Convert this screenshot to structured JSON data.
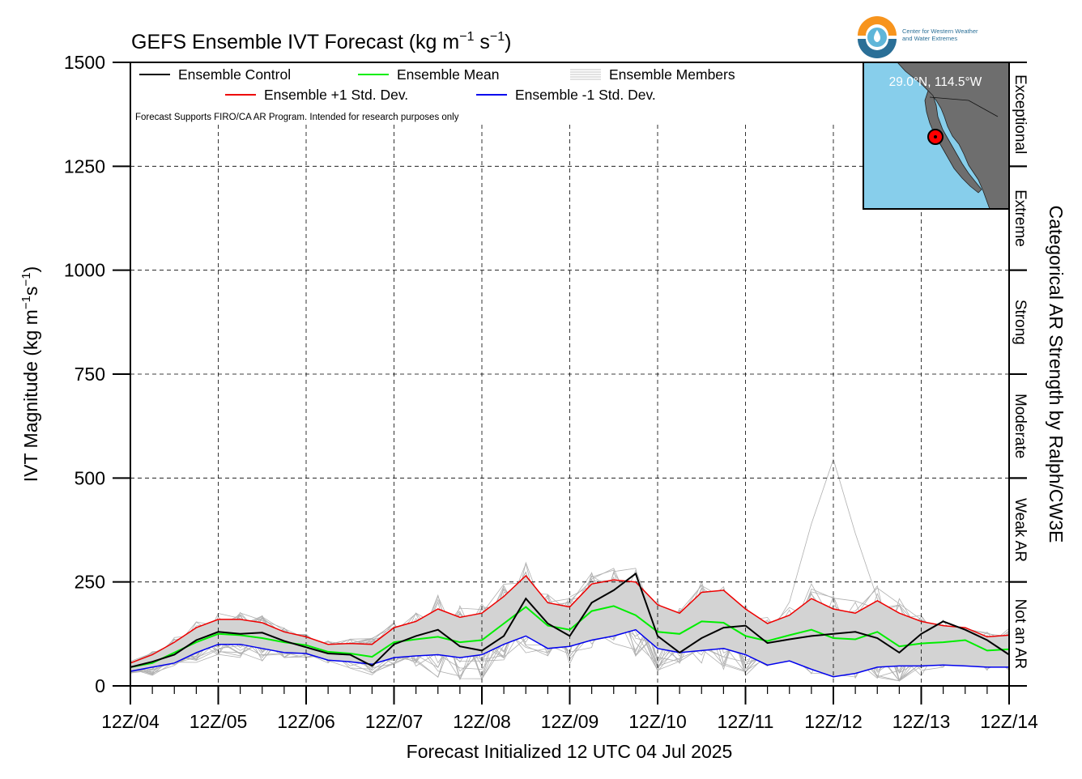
{
  "logo": {
    "name": "cw3e-logo-icon",
    "line1": "Center for Western Weather",
    "line2": "and Water Extremes",
    "colors": {
      "orange": "#f7941d",
      "teal": "#2a6f97",
      "light": "#5fb6d9"
    }
  },
  "inset_map": {
    "label": "29.0°N, 114.5°W",
    "lat": 29.0,
    "lon": -114.5,
    "ocean_color": "#87ceeb",
    "land_color": "#6e6e6e",
    "marker_color": "#ff0000"
  },
  "chart_data": {
    "type": "line",
    "title_main": "GEFS Ensemble IVT Forecast (kg m",
    "title_sup1": "−1",
    "title_mid": " s",
    "title_sup2": "−1",
    "title_end": ")",
    "xlabel": "Forecast Initialized 12 UTC 04 Jul 2025",
    "ylabel_main": "IVT Magnitude (kg m",
    "ylabel_sup1": "−1",
    "ylabel_mid": "s",
    "ylabel_sup2": "−1",
    "ylabel_end": ")",
    "right_label": "Categorical AR Strength by Ralph/CW3E",
    "note": "Forecast Supports FIRO/CA AR Program. Intended for research purposes only",
    "x_range_days": [
      0,
      10
    ],
    "ylim": [
      0,
      1500
    ],
    "yticks": [
      0,
      250,
      500,
      750,
      1000,
      1250,
      1500
    ],
    "xtick_labels": [
      "12Z/04",
      "12Z/05",
      "12Z/06",
      "12Z/07",
      "12Z/08",
      "12Z/09",
      "12Z/10",
      "12Z/11",
      "12Z/12",
      "12Z/13",
      "12Z/14"
    ],
    "grid": true,
    "legend_placement": "top-left",
    "legend": [
      {
        "label": "Ensemble Control",
        "color": "#000000",
        "style": "line"
      },
      {
        "label": "Ensemble Mean",
        "color": "#00ee00",
        "style": "line"
      },
      {
        "label": "Ensemble Members",
        "color": "#b0b0b0",
        "style": "multi"
      },
      {
        "label": "Ensemble +1 Std. Dev.",
        "color": "#ee0000",
        "style": "line"
      },
      {
        "label": "Ensemble -1 Std. Dev.",
        "color": "#0000ee",
        "style": "line"
      }
    ],
    "categories": [
      {
        "label": "Not an AR",
        "range": [
          0,
          250
        ]
      },
      {
        "label": "Weak AR",
        "range": [
          250,
          500
        ]
      },
      {
        "label": "Moderate",
        "range": [
          500,
          750
        ]
      },
      {
        "label": "Strong",
        "range": [
          750,
          1000
        ]
      },
      {
        "label": "Extreme",
        "range": [
          1000,
          1250
        ]
      },
      {
        "label": "Exceptional",
        "range": [
          1250,
          1500
        ]
      }
    ],
    "series": [
      {
        "name": "Ensemble Control",
        "color": "#000000",
        "width": 2,
        "x": [
          0,
          0.25,
          0.5,
          0.75,
          1,
          1.25,
          1.5,
          1.75,
          2,
          2.25,
          2.5,
          2.75,
          3,
          3.25,
          3.5,
          3.75,
          4,
          4.25,
          4.5,
          4.75,
          5,
          5.25,
          5.5,
          5.75,
          6,
          6.25,
          6.5,
          6.75,
          7,
          7.25,
          7.5,
          7.75,
          8,
          8.25,
          8.5,
          8.75,
          9,
          9.25,
          9.5,
          9.75,
          10
        ],
        "y": [
          45,
          58,
          75,
          110,
          130,
          125,
          128,
          108,
          93,
          78,
          75,
          48,
          100,
          120,
          135,
          95,
          85,
          120,
          210,
          150,
          120,
          200,
          230,
          270,
          120,
          80,
          115,
          140,
          145,
          103,
          112,
          120,
          125,
          130,
          115,
          80,
          125,
          155,
          135,
          110,
          75
        ]
      },
      {
        "name": "Ensemble Mean",
        "color": "#00ee00",
        "width": 2,
        "x": [
          0,
          0.25,
          0.5,
          0.75,
          1,
          1.25,
          1.5,
          1.75,
          2,
          2.25,
          2.5,
          2.75,
          3,
          3.25,
          3.5,
          3.75,
          4,
          4.25,
          4.5,
          4.75,
          5,
          5.25,
          5.5,
          5.75,
          6,
          6.25,
          6.5,
          6.75,
          7,
          7.25,
          7.5,
          7.75,
          8,
          8.25,
          8.5,
          8.75,
          9,
          9.25,
          9.5,
          9.75,
          10
        ],
        "y": [
          45,
          55,
          80,
          105,
          125,
          122,
          115,
          105,
          98,
          82,
          78,
          70,
          105,
          112,
          118,
          105,
          110,
          150,
          190,
          145,
          135,
          180,
          192,
          170,
          130,
          125,
          155,
          152,
          120,
          108,
          122,
          135,
          115,
          112,
          130,
          95,
          102,
          105,
          110,
          85,
          88
        ]
      },
      {
        "name": "Ensemble +1 Std. Dev.",
        "color": "#ee0000",
        "width": 1.5,
        "x": [
          0,
          0.25,
          0.5,
          0.75,
          1,
          1.25,
          1.5,
          1.75,
          2,
          2.25,
          2.5,
          2.75,
          3,
          3.25,
          3.5,
          3.75,
          4,
          4.25,
          4.5,
          4.75,
          5,
          5.25,
          5.5,
          5.75,
          6,
          6.25,
          6.5,
          6.75,
          7,
          7.25,
          7.5,
          7.75,
          8,
          8.25,
          8.5,
          8.75,
          9,
          9.25,
          9.5,
          9.75,
          10
        ],
        "y": [
          55,
          75,
          105,
          140,
          160,
          160,
          152,
          130,
          118,
          100,
          102,
          100,
          140,
          155,
          185,
          165,
          175,
          215,
          265,
          200,
          190,
          245,
          255,
          250,
          195,
          175,
          225,
          230,
          185,
          150,
          170,
          210,
          185,
          175,
          205,
          175,
          155,
          145,
          140,
          118,
          122
        ]
      },
      {
        "name": "Ensemble -1 Std. Dev.",
        "color": "#0000ee",
        "width": 1.5,
        "x": [
          0,
          0.25,
          0.5,
          0.75,
          1,
          1.25,
          1.5,
          1.75,
          2,
          2.25,
          2.5,
          2.75,
          3,
          3.25,
          3.5,
          3.75,
          4,
          4.25,
          4.5,
          4.75,
          5,
          5.25,
          5.5,
          5.75,
          6,
          6.25,
          6.5,
          6.75,
          7,
          7.25,
          7.5,
          7.75,
          8,
          8.25,
          8.5,
          8.75,
          9,
          9.25,
          9.5,
          9.75,
          10
        ],
        "y": [
          35,
          45,
          55,
          80,
          100,
          100,
          90,
          80,
          78,
          62,
          58,
          52,
          68,
          72,
          75,
          68,
          75,
          100,
          120,
          90,
          95,
          110,
          120,
          135,
          90,
          80,
          85,
          90,
          75,
          50,
          60,
          40,
          22,
          30,
          45,
          48,
          48,
          50,
          48,
          45,
          45
        ]
      }
    ]
  }
}
